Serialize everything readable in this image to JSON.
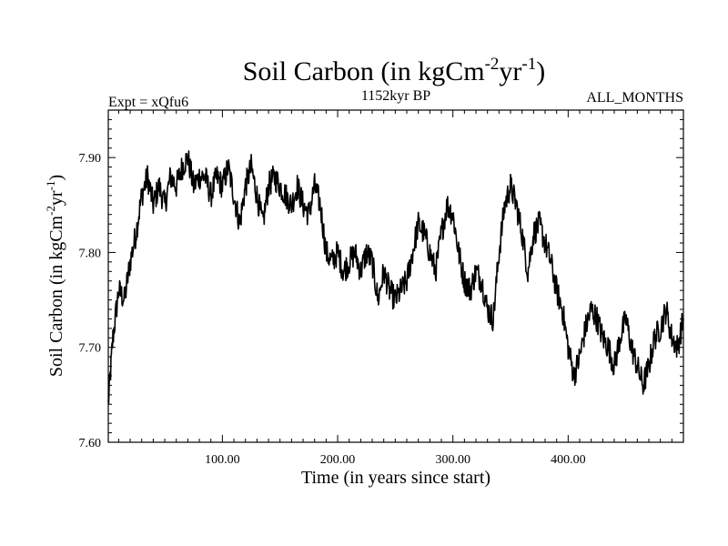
{
  "chart_data": {
    "type": "line",
    "title": "Soil Carbon (in kgCm",
    "title_sup1": "-2",
    "title_mid": "yr",
    "title_sup2": "-1",
    "title_end": ")",
    "subtitle_left": "Expt = xQfu6",
    "subtitle_center": "1152kyr BP",
    "subtitle_right": "ALL_MONTHS",
    "xlabel": "Time (in years since start)",
    "ylabel": "Soil Carbon (in kgCm",
    "ylabel_sup1": "-2",
    "ylabel_mid": "yr",
    "ylabel_sup2": "-1",
    "ylabel_end": ")",
    "xlim": [
      1,
      500
    ],
    "ylim": [
      7.6,
      7.95
    ],
    "x_ticks": [
      100,
      200,
      300,
      400
    ],
    "x_tick_labels": [
      "100.00",
      "200.00",
      "300.00",
      "400.00"
    ],
    "y_ticks": [
      7.6,
      7.7,
      7.8,
      7.9
    ],
    "y_tick_labels": [
      "7.60",
      "7.70",
      "7.80",
      "7.90"
    ],
    "line_color": "#000000",
    "series": [
      {
        "name": "Soil Carbon",
        "x": [
          1,
          5,
          10,
          15,
          20,
          25,
          30,
          35,
          40,
          45,
          50,
          55,
          60,
          65,
          70,
          75,
          80,
          85,
          90,
          95,
          100,
          105,
          110,
          115,
          120,
          125,
          130,
          135,
          140,
          145,
          150,
          155,
          160,
          165,
          170,
          175,
          180,
          185,
          190,
          195,
          200,
          205,
          210,
          215,
          220,
          225,
          230,
          235,
          240,
          245,
          250,
          255,
          260,
          265,
          270,
          275,
          280,
          285,
          290,
          295,
          300,
          305,
          310,
          315,
          320,
          325,
          330,
          335,
          340,
          345,
          350,
          355,
          360,
          365,
          370,
          375,
          380,
          385,
          390,
          395,
          400,
          405,
          410,
          415,
          420,
          425,
          430,
          435,
          440,
          445,
          450,
          455,
          460,
          465,
          470,
          475,
          480,
          485,
          490,
          495,
          500
        ],
        "values": [
          7.64,
          7.71,
          7.76,
          7.75,
          7.79,
          7.82,
          7.86,
          7.88,
          7.85,
          7.87,
          7.85,
          7.88,
          7.87,
          7.89,
          7.9,
          7.87,
          7.88,
          7.88,
          7.86,
          7.88,
          7.87,
          7.89,
          7.86,
          7.83,
          7.87,
          7.89,
          7.86,
          7.83,
          7.87,
          7.88,
          7.87,
          7.86,
          7.85,
          7.87,
          7.85,
          7.84,
          7.87,
          7.85,
          7.8,
          7.79,
          7.8,
          7.78,
          7.79,
          7.8,
          7.78,
          7.8,
          7.79,
          7.75,
          7.78,
          7.76,
          7.75,
          7.76,
          7.77,
          7.8,
          7.83,
          7.82,
          7.8,
          7.78,
          7.82,
          7.85,
          7.84,
          7.8,
          7.77,
          7.76,
          7.78,
          7.77,
          7.74,
          7.73,
          7.8,
          7.85,
          7.87,
          7.85,
          7.82,
          7.78,
          7.82,
          7.83,
          7.81,
          7.79,
          7.76,
          7.74,
          7.7,
          7.67,
          7.69,
          7.72,
          7.74,
          7.73,
          7.71,
          7.7,
          7.68,
          7.71,
          7.73,
          7.7,
          7.68,
          7.66,
          7.68,
          7.71,
          7.72,
          7.74,
          7.71,
          7.7,
          7.73
        ]
      }
    ]
  }
}
